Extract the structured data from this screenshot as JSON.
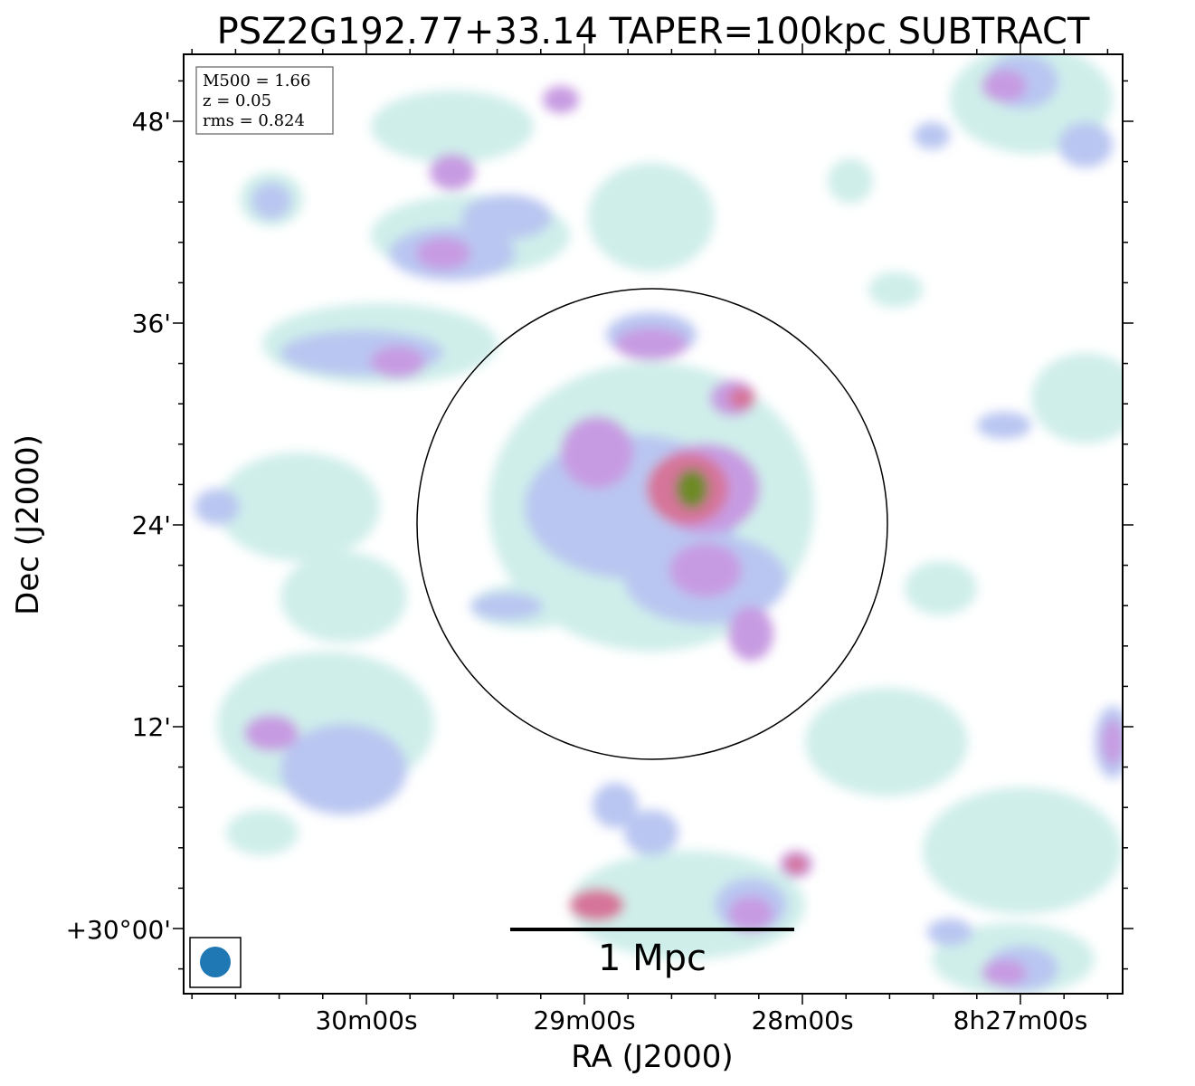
{
  "title": "PSZ2G192.77+33.14 TAPER=100kpc SUBTRACT",
  "info_box": {
    "lines": [
      "M500 = 1.66",
      "z = 0.05",
      "rms = 0.824"
    ]
  },
  "axes": {
    "xlabel": "RA (J2000)",
    "ylabel": "Dec (J2000)",
    "x_ticks": [
      "30m00s",
      "29m00s",
      "28m00s",
      "8h27m00s"
    ],
    "y_ticks": [
      "48'",
      "36'",
      "24'",
      "12'",
      "+30°00'"
    ]
  },
  "scale_bar": {
    "label": "1 Mpc"
  },
  "colors": {
    "circle": "#000000",
    "beam": "#1f77b4",
    "emission_faint": "#cfeeea",
    "emission_low": "#b9c6f1",
    "emission_mid": "#c79be2",
    "emission_high": "#d6749a",
    "emission_peak": "#6e8a26"
  }
}
